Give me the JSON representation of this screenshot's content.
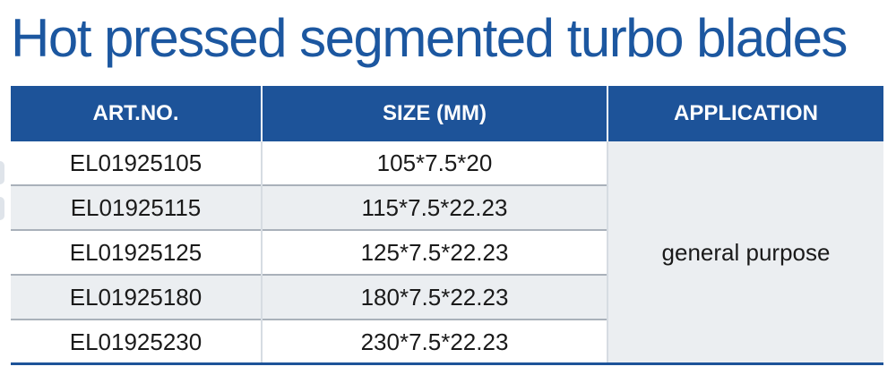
{
  "title": "Hot pressed segmented turbo blades",
  "colors": {
    "title": "#1c57a0",
    "header_background": "#1d5399",
    "header_text": "#ffffff",
    "row_shade": "#ebeef1",
    "row_divider": "#a9b1ba"
  },
  "table": {
    "headers": [
      "ART.NO.",
      "SIZE (MM)",
      "APPLICATION"
    ],
    "rows": [
      {
        "art_no": "EL01925105",
        "size": "105*7.5*20"
      },
      {
        "art_no": "EL01925115",
        "size": "115*7.5*22.23"
      },
      {
        "art_no": "EL01925125",
        "size": "125*7.5*22.23"
      },
      {
        "art_no": "EL01925180",
        "size": "180*7.5*22.23"
      },
      {
        "art_no": "EL01925230",
        "size": "230*7.5*22.23"
      }
    ],
    "application": "general purpose"
  }
}
